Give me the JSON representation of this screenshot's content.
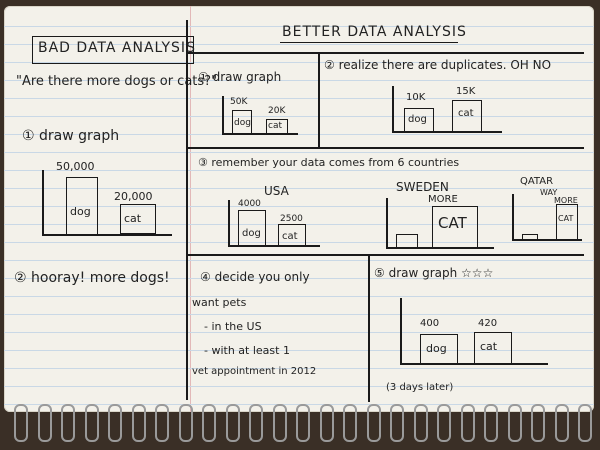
{
  "left_panel": {
    "title": "BAD DATA ANALYSIS",
    "question": "\"Are there more dogs or cats?\"",
    "step1": "① draw graph",
    "chart": {
      "val_dog": "50,000",
      "val_cat": "20,000",
      "dog": "dog",
      "cat": "cat"
    },
    "step2": "② hooray! more dogs!"
  },
  "right_panel": {
    "title": "BETTER DATA ANALYSIS",
    "p1": {
      "step": "① draw graph",
      "val_dog": "50K",
      "val_cat": "20K",
      "dog": "dog",
      "cat": "cat"
    },
    "p2": {
      "step": "② realize there are duplicates. OH NO",
      "val_dog": "10K",
      "val_cat": "15K",
      "dog": "dog",
      "cat": "cat"
    },
    "p3": {
      "step": "③ remember your data comes from 6 countries",
      "usa": {
        "label": "USA",
        "val_dog": "4000",
        "val_cat": "2500",
        "dog": "dog",
        "cat": "cat"
      },
      "sweden": {
        "label": "SWEDEN",
        "more": "MORE",
        "cat": "CAT"
      },
      "qatar": {
        "label": "QATAR",
        "way": "WAY",
        "more": "MORE",
        "cat": "CAT"
      }
    },
    "p4": {
      "step": "④ decide you only",
      "line1": "want pets",
      "line2": "- in the US",
      "line3": "- with at least 1",
      "line4": "vet appointment in 2012"
    },
    "p5": {
      "step": "⑤ draw graph ☆☆☆",
      "val_dog": "400",
      "val_cat": "420",
      "dog": "dog",
      "cat": "cat",
      "note": "(3 days later)"
    }
  }
}
